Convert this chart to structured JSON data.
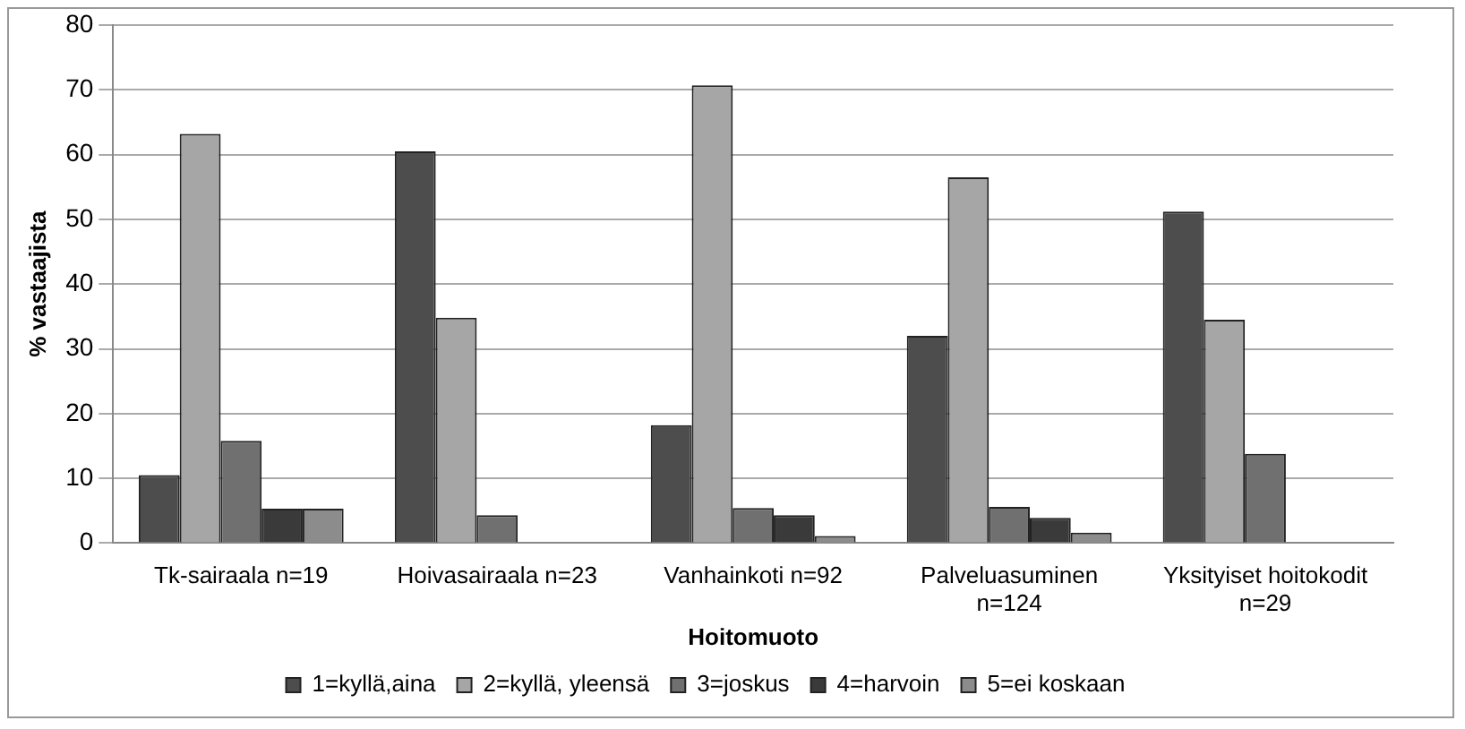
{
  "chart_data": {
    "type": "bar",
    "xlabel": "Hoitomuoto",
    "ylabel": "% vastaajista",
    "categories": [
      "Tk-sairaala n=19",
      "Hoivasairaala n=23",
      "Vanhainkoti n=92",
      "Palveluasuminen n=124",
      "Yksityiset hoitokodit n=29"
    ],
    "series": [
      {
        "name": "1=kyllä,aina",
        "color": "#4d4d4d",
        "values": [
          10.5,
          60.5,
          18.2,
          32,
          51.2
        ]
      },
      {
        "name": "2=kyllä, yleensä",
        "color": "#a6a6a6",
        "values": [
          63.2,
          34.8,
          70.7,
          56.5,
          34.5
        ]
      },
      {
        "name": "3=joskus",
        "color": "#707070",
        "values": [
          15.8,
          4.3,
          5.4,
          5.6,
          13.8
        ]
      },
      {
        "name": "4=harvoin",
        "color": "#3a3a3a",
        "values": [
          5.3,
          0,
          4.3,
          3.9,
          0
        ]
      },
      {
        "name": "5=ei koskaan",
        "color": "#8c8c8c",
        "values": [
          5.3,
          0,
          1.1,
          1.6,
          0
        ]
      }
    ],
    "ylim": [
      0,
      80
    ],
    "yticks": [
      0,
      10,
      20,
      30,
      40,
      50,
      60,
      70,
      80
    ],
    "grid": "y",
    "legend": "bottom"
  }
}
